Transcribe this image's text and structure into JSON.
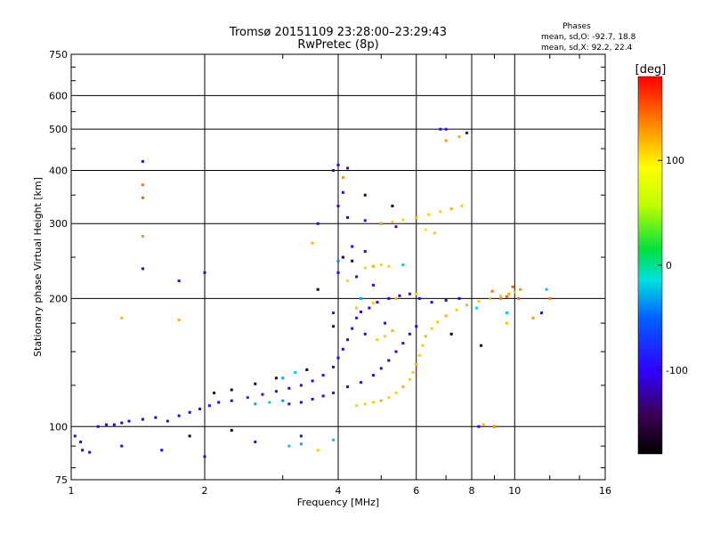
{
  "chart_data": {
    "type": "scatter",
    "title": "Tromsø 20151109 23:28:00–23:29:43",
    "subtitle": "RwPretec (8p)",
    "xlabel": "Frequency [MHz]",
    "ylabel": "Stationary phase Virtual Height [km]",
    "x_scale": "log",
    "y_scale": "log",
    "xlim": [
      1,
      16
    ],
    "ylim": [
      75,
      750
    ],
    "x_ticks": [
      1,
      2,
      4,
      6,
      8,
      10,
      16
    ],
    "x_tick_labels": [
      "1",
      "2",
      "4",
      "6",
      "8",
      "10",
      "16"
    ],
    "y_ticks": [
      75,
      100,
      200,
      300,
      400,
      500,
      600,
      750
    ],
    "y_tick_labels": [
      "75",
      "100",
      "200",
      "300",
      "400",
      "500",
      "600",
      "750"
    ],
    "grid": true,
    "stats": {
      "heading": "Phases",
      "o_line": "mean, sd,O: -92.7, 18.8",
      "x_line": "mean, sd,X:  92.2, 22.4"
    },
    "colorbar": {
      "label": "[deg]",
      "range": [
        -180,
        180
      ],
      "ticks": [
        100,
        0,
        -100
      ],
      "tick_labels": [
        "100",
        "0",
        "-100"
      ]
    },
    "series": [
      {
        "points": [
          [
            1.02,
            95,
            -100
          ],
          [
            1.06,
            88,
            -110
          ],
          [
            1.1,
            87,
            -100
          ],
          [
            1.15,
            100,
            -110
          ],
          [
            1.2,
            101,
            -110
          ],
          [
            1.25,
            101,
            -100
          ],
          [
            1.3,
            102,
            -110
          ],
          [
            1.35,
            103,
            -100
          ],
          [
            1.45,
            104,
            -110
          ],
          [
            1.55,
            105,
            -110
          ],
          [
            1.65,
            103,
            -100
          ],
          [
            1.75,
            106,
            -110
          ],
          [
            1.85,
            108,
            -110
          ],
          [
            1.95,
            110,
            -100
          ],
          [
            2.05,
            112,
            -100
          ],
          [
            2.15,
            114,
            -110
          ],
          [
            2.3,
            115,
            -100
          ],
          [
            2.5,
            117,
            -80
          ],
          [
            2.7,
            119,
            -90
          ],
          [
            2.9,
            121,
            -100
          ],
          [
            3.1,
            123,
            -100
          ],
          [
            3.3,
            125,
            -110
          ],
          [
            3.5,
            128,
            -110
          ],
          [
            3.7,
            132,
            -100
          ],
          [
            3.9,
            138,
            -100
          ],
          [
            4.0,
            145,
            -100
          ],
          [
            4.1,
            152,
            -110
          ],
          [
            4.2,
            160,
            -100
          ],
          [
            4.3,
            170,
            -110
          ],
          [
            4.4,
            180,
            -100
          ],
          [
            4.5,
            186,
            -110
          ],
          [
            4.7,
            190,
            -100
          ],
          [
            4.9,
            196,
            -100
          ],
          [
            5.2,
            200,
            -100
          ],
          [
            5.5,
            203,
            -110
          ],
          [
            5.8,
            205,
            -100
          ],
          [
            6.1,
            200,
            -100
          ],
          [
            6.5,
            196,
            -110
          ],
          [
            7.0,
            198,
            -100
          ],
          [
            7.5,
            200,
            -110
          ],
          [
            3.1,
            113,
            -100
          ],
          [
            3.3,
            114,
            -110
          ],
          [
            3.5,
            116,
            -110
          ],
          [
            3.7,
            118,
            -100
          ],
          [
            3.9,
            120,
            -100
          ],
          [
            4.2,
            124,
            -110
          ],
          [
            4.5,
            127,
            -100
          ],
          [
            4.8,
            132,
            -110
          ],
          [
            5.0,
            137,
            -100
          ],
          [
            5.2,
            143,
            -110
          ],
          [
            5.4,
            150,
            -100
          ],
          [
            5.6,
            157,
            -110
          ],
          [
            5.8,
            165,
            -100
          ],
          [
            6.0,
            172,
            -110
          ],
          [
            1.45,
            420,
            -100
          ],
          [
            1.45,
            235,
            -100
          ],
          [
            4.0,
            412,
            -110
          ],
          [
            4.2,
            405,
            -100
          ],
          [
            4.1,
            355,
            -110
          ],
          [
            4.0,
            330,
            -100
          ],
          [
            4.2,
            310,
            -110
          ],
          [
            4.6,
            305,
            -100
          ],
          [
            5.0,
            300,
            -110
          ],
          [
            5.4,
            295,
            -100
          ],
          [
            4.3,
            265,
            -100
          ],
          [
            4.6,
            258,
            -110
          ],
          [
            4.0,
            230,
            -100
          ],
          [
            4.4,
            225,
            -110
          ],
          [
            4.8,
            215,
            -100
          ],
          [
            3.6,
            300,
            -110
          ],
          [
            3.9,
            185,
            -100
          ],
          [
            4.6,
            165,
            -110
          ],
          [
            5.1,
            175,
            -100
          ],
          [
            6.8,
            500,
            -110
          ],
          [
            7.0,
            500,
            -100
          ],
          [
            7.8,
            490,
            -110
          ],
          [
            1.05,
            92,
            -100
          ],
          [
            1.3,
            90,
            -110
          ],
          [
            1.6,
            88,
            -100
          ],
          [
            2.0,
            85,
            -110
          ],
          [
            2.6,
            92,
            -100
          ],
          [
            3.3,
            95,
            -110
          ],
          [
            8.3,
            100,
            -100
          ],
          [
            9.0,
            100,
            -110
          ],
          [
            11.5,
            185,
            -100
          ],
          [
            1.75,
            220,
            -100
          ],
          [
            2.0,
            230,
            -110
          ],
          [
            3.9,
            400,
            -100
          ]
        ]
      },
      {
        "points": [
          [
            4.4,
            112,
            110
          ],
          [
            4.6,
            113,
            110
          ],
          [
            4.8,
            114,
            110
          ],
          [
            5.0,
            115,
            120
          ],
          [
            5.2,
            117,
            110
          ],
          [
            5.4,
            120,
            110
          ],
          [
            5.6,
            124,
            120
          ],
          [
            5.8,
            129,
            110
          ],
          [
            5.9,
            134,
            110
          ],
          [
            6.0,
            140,
            120
          ],
          [
            6.1,
            147,
            110
          ],
          [
            6.2,
            155,
            110
          ],
          [
            6.3,
            163,
            120
          ],
          [
            6.5,
            170,
            110
          ],
          [
            6.7,
            176,
            110
          ],
          [
            7.0,
            182,
            120
          ],
          [
            7.4,
            188,
            110
          ],
          [
            7.8,
            193,
            120
          ],
          [
            8.3,
            197,
            110
          ],
          [
            8.8,
            200,
            120
          ],
          [
            9.3,
            203,
            110
          ],
          [
            9.7,
            205,
            120
          ],
          [
            10.0,
            207,
            110
          ],
          [
            10.3,
            210,
            130
          ],
          [
            4.6,
            236,
            110
          ],
          [
            4.8,
            238,
            120
          ],
          [
            5.0,
            240,
            110
          ],
          [
            5.2,
            238,
            110
          ],
          [
            4.9,
            160,
            110
          ],
          [
            5.1,
            163,
            110
          ],
          [
            5.3,
            168,
            120
          ],
          [
            5.0,
            300,
            120
          ],
          [
            5.3,
            303,
            110
          ],
          [
            5.6,
            306,
            110
          ],
          [
            6.0,
            310,
            120
          ],
          [
            6.4,
            315,
            110
          ],
          [
            6.8,
            320,
            110
          ],
          [
            7.2,
            325,
            120
          ],
          [
            7.6,
            330,
            110
          ],
          [
            6.3,
            290,
            100
          ],
          [
            6.6,
            285,
            110
          ],
          [
            4.8,
            195,
            110
          ],
          [
            5.4,
            200,
            120
          ],
          [
            6.0,
            205,
            110
          ],
          [
            9.3,
            200,
            140
          ],
          [
            9.6,
            202,
            150
          ],
          [
            10.2,
            200,
            145
          ],
          [
            8.9,
            208,
            140
          ],
          [
            9.9,
            213,
            150
          ],
          [
            1.45,
            370,
            140
          ],
          [
            1.45,
            345,
            150
          ],
          [
            1.45,
            280,
            130
          ],
          [
            1.3,
            180,
            120
          ],
          [
            1.75,
            178,
            120
          ],
          [
            7.0,
            470,
            130
          ],
          [
            7.5,
            480,
            120
          ],
          [
            4.1,
            385,
            130
          ],
          [
            3.5,
            270,
            120
          ],
          [
            9.0,
            100,
            130
          ],
          [
            8.5,
            101,
            120
          ],
          [
            3.6,
            88,
            110
          ],
          [
            9.6,
            175,
            115
          ],
          [
            11.0,
            180,
            130
          ],
          [
            12.0,
            200,
            140
          ],
          [
            4.2,
            220,
            110
          ],
          [
            4.4,
            190,
            115
          ]
        ]
      },
      {
        "points": [
          [
            2.6,
            113,
            -30
          ],
          [
            2.8,
            114,
            -20
          ],
          [
            3.0,
            115,
            -30
          ],
          [
            4.0,
            245,
            -40
          ],
          [
            4.1,
            250,
            -30
          ],
          [
            3.1,
            90,
            -20
          ],
          [
            3.3,
            91,
            -30
          ],
          [
            3.9,
            93,
            -20
          ],
          [
            3.0,
            130,
            -30
          ],
          [
            3.2,
            134,
            -20
          ],
          [
            8.2,
            190,
            -10
          ],
          [
            9.6,
            185,
            -20
          ],
          [
            11.8,
            210,
            -20
          ],
          [
            4.5,
            200,
            -30
          ],
          [
            5.6,
            240,
            -20
          ]
        ]
      },
      {
        "points": [
          [
            2.1,
            120,
            -160
          ],
          [
            2.3,
            122,
            -170
          ],
          [
            2.6,
            126,
            -150
          ],
          [
            2.9,
            130,
            -160
          ],
          [
            3.4,
            136,
            -170
          ],
          [
            4.1,
            250,
            -150
          ],
          [
            4.3,
            245,
            -160
          ],
          [
            3.6,
            210,
            -160
          ],
          [
            4.6,
            350,
            -160
          ],
          [
            5.3,
            330,
            -170
          ],
          [
            8.4,
            155,
            -160
          ],
          [
            7.2,
            165,
            -170
          ],
          [
            3.9,
            172,
            -150
          ],
          [
            1.85,
            95,
            -160
          ],
          [
            2.3,
            98,
            -170
          ]
        ]
      }
    ]
  }
}
